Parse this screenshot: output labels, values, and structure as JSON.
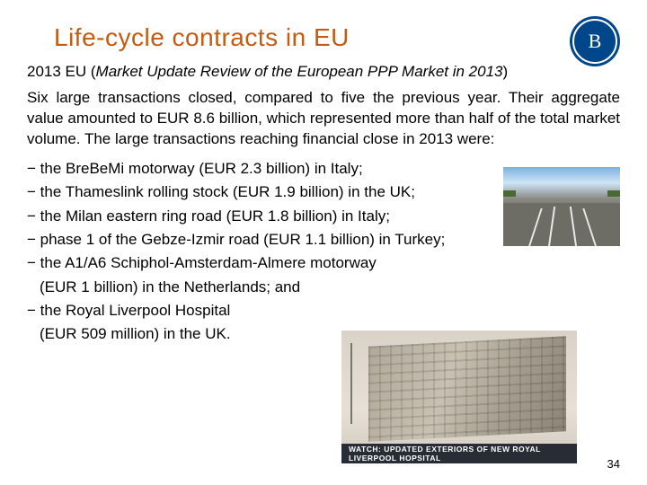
{
  "title": "Life-cycle contracts in EU",
  "subtitle_prefix": "2013 EU (",
  "subtitle_italic": "Market Update Review of the European PPP Market in 2013",
  "subtitle_suffix": ")",
  "body": "Six large transactions closed, compared to five the previous year. Their aggregate value amounted to EUR 8.6 billion, which represented more than half of the total market volume. The large transactions reaching financial close in 2013 were:",
  "items": [
    "− the BreBeMi motorway (EUR 2.3 billion) in Italy;",
    "− the Thameslink rolling stock (EUR 1.9 billion) in the UK;",
    "− the Milan eastern ring road (EUR 1.8 billion) in Italy;",
    "− phase 1 of the Gebze-Izmir road (EUR 1.1 billion) in Turkey;",
    "− the A1/A6 Schiphol-Amsterdam-Almere motorway"
  ],
  "item5_cont": "(EUR 1 billion) in the Netherlands; and",
  "item6": "− the Royal Liverpool Hospital",
  "item6_cont": "(EUR 509 million) in the UK.",
  "page_number": "34",
  "logo_text": "В",
  "hospital_caption": "WATCH: UPDATED EXTERIORS OF NEW ROYAL LIVERPOOL HOPSITAL",
  "colors": {
    "title": "#c55a11",
    "logo_bg": "#00468b",
    "text": "#000000",
    "caption_bg": "rgba(25,30,40,0.92)"
  }
}
